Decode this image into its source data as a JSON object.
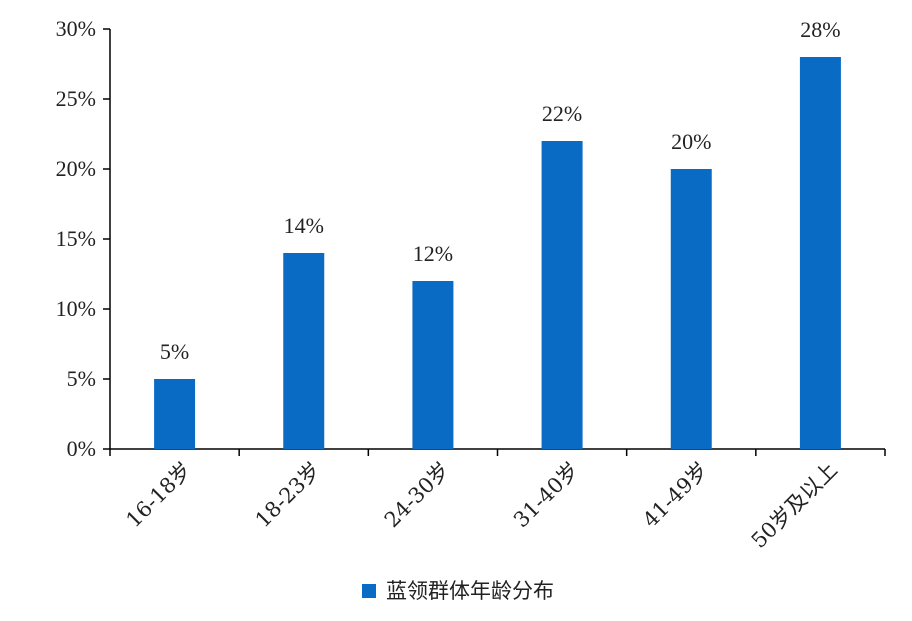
{
  "chart_data": {
    "type": "bar",
    "categories": [
      "16-18岁",
      "18-23岁",
      "24-30岁",
      "31-40岁",
      "41-49岁",
      "50岁及以上"
    ],
    "series": [
      {
        "name": "蓝领群体年龄分布",
        "values": [
          5,
          14,
          12,
          22,
          20,
          28
        ],
        "data_labels": [
          "5%",
          "14%",
          "12%",
          "22%",
          "20%",
          "28%"
        ],
        "color": "#0a6bc4"
      }
    ],
    "y_ticks": [
      "0%",
      "5%",
      "10%",
      "15%",
      "20%",
      "25%",
      "30%"
    ],
    "ylim": [
      0,
      30
    ],
    "y_step": 5,
    "title": "",
    "xlabel": "",
    "ylabel": "",
    "grid": false,
    "legend_position": "bottom"
  }
}
